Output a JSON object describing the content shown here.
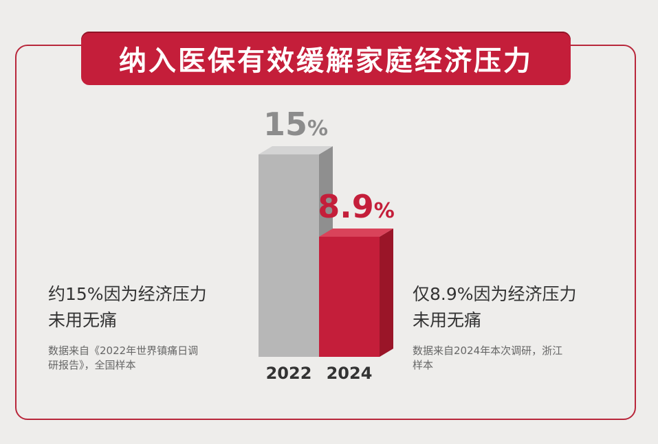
{
  "banner": {
    "title": "纳入医保有效缓解家庭经济压力"
  },
  "left_text": {
    "headline_line1": "约15%因为经济压力",
    "headline_line2": "未用无痛",
    "source_line1": "数据来自《2022年世界镇痛日调",
    "source_line2": "研报告》，全国样本"
  },
  "right_text": {
    "headline_line1": "仅8.9%因为经济压力",
    "headline_line2": "未用无痛",
    "source_line1": "数据来自2024年本次调研，浙江",
    "source_line2": "样本"
  },
  "colors": {
    "accent": "#c41e3a",
    "gray_bar": "#b7b7b7",
    "gray_label": "#8c8c8c",
    "text": "#333333",
    "year_label": "#333333"
  },
  "chart_data": {
    "type": "bar",
    "categories": [
      "2022",
      "2024"
    ],
    "values": [
      15,
      8.9
    ],
    "value_labels": [
      {
        "number": "15",
        "unit": "%"
      },
      {
        "number": "8.9",
        "unit": "%"
      }
    ],
    "title": "纳入医保有效缓解家庭经济压力",
    "xlabel": "",
    "ylabel": "",
    "ylim": [
      0,
      15
    ],
    "grid": false,
    "legend": "none"
  }
}
